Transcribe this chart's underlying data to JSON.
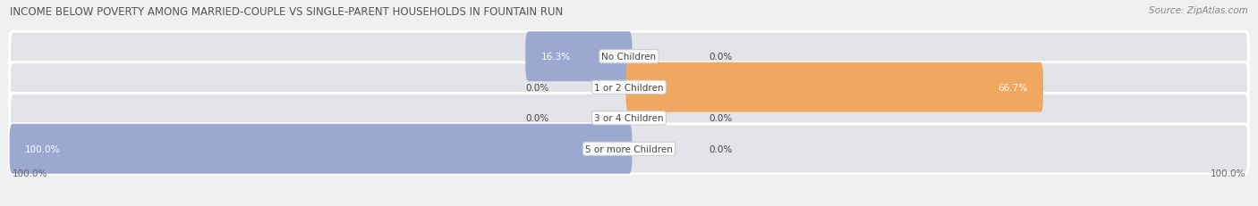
{
  "title": "INCOME BELOW POVERTY AMONG MARRIED-COUPLE VS SINGLE-PARENT HOUSEHOLDS IN FOUNTAIN RUN",
  "source": "Source: ZipAtlas.com",
  "categories": [
    "No Children",
    "1 or 2 Children",
    "3 or 4 Children",
    "5 or more Children"
  ],
  "married_values": [
    16.3,
    0.0,
    0.0,
    100.0
  ],
  "single_values": [
    0.0,
    66.7,
    0.0,
    0.0
  ],
  "married_color": "#9ba8d0",
  "single_color": "#f0a860",
  "bar_height": 0.62,
  "axis_left_label": "100.0%",
  "axis_right_label": "100.0%",
  "background_color": "#f0f0f2",
  "bar_background": "#e4e4e8",
  "title_fontsize": 8.5,
  "source_fontsize": 7.5,
  "label_fontsize": 7.5,
  "tick_fontsize": 7.5,
  "max_val": 100
}
